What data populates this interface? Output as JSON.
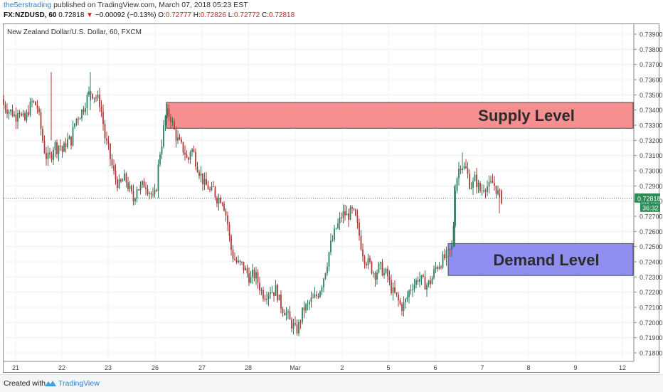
{
  "header": {
    "author": "the5erstrading",
    "published": "published on TradingView.com, March 07, 2018 05:23 EST",
    "symbol": "FX:NZDUSD, 60",
    "last": "0.72818",
    "arrow": "▼",
    "change": "−0.00092 (−0.13%)",
    "o_label": "O:",
    "o_value": "0.72777",
    "h_label": "H:",
    "h_value": "0.72826",
    "l_label": "L:",
    "l_value": "0.72772",
    "c_label": "C:",
    "c_value": "0.72818"
  },
  "footer": {
    "created_with": "Created with",
    "brand": "TradingView"
  },
  "chart_data": {
    "type": "candlestick",
    "title": "New Zealand Dollar/U.S. Dollar, 60, FXCM",
    "ylim": [
      0.7175,
      0.7397
    ],
    "y_ticks": [
      "0.73900",
      "0.73800",
      "0.73700",
      "0.73600",
      "0.73500",
      "0.73400",
      "0.73300",
      "0.73200",
      "0.73100",
      "0.73000",
      "0.72900",
      "0.72800",
      "0.72700",
      "0.72600",
      "0.72500",
      "0.72400",
      "0.72300",
      "0.72200",
      "0.72100",
      "0.72000",
      "0.71900",
      "0.71800"
    ],
    "x_ticks": [
      "21",
      "22",
      "23",
      "26",
      "27",
      "28",
      "Mar",
      "2",
      "5",
      "6",
      "7",
      "8",
      "9",
      "12"
    ],
    "last_price": "0.72818",
    "countdown": "36:32",
    "zones": [
      {
        "label": "Supply Level",
        "from": 0.7328,
        "to": 0.7345,
        "color": "#f27c7c"
      },
      {
        "label": "Demand Level",
        "from": 0.7231,
        "to": 0.7252,
        "color": "#7b7bf0"
      }
    ],
    "up_color": "#2e7d5b",
    "down_color": "#b33a3a",
    "path_x": [
      0,
      2,
      4,
      6,
      8,
      10,
      12,
      13,
      14,
      15,
      16,
      18,
      20,
      23,
      25,
      26,
      27,
      28,
      30,
      32,
      34,
      36,
      38,
      40,
      42,
      44,
      46,
      48,
      50,
      52,
      54,
      56,
      58,
      60,
      62,
      64,
      66,
      67,
      68,
      69,
      70,
      71,
      72,
      74,
      76,
      78,
      80,
      82,
      83,
      84,
      85,
      86,
      87,
      88,
      90,
      92,
      94,
      96,
      98,
      100,
      102,
      103,
      104,
      105,
      106,
      107,
      108,
      110,
      112,
      114,
      116,
      118,
      120,
      122,
      124,
      126,
      128,
      130,
      132,
      134,
      136,
      138,
      140,
      142,
      144,
      146,
      148,
      150,
      152,
      154,
      156,
      157,
      158,
      159,
      160,
      161,
      162,
      163,
      164,
      166,
      168,
      170,
      172,
      174,
      176,
      178,
      180,
      182,
      184,
      186,
      188,
      190,
      192,
      194,
      196,
      198,
      200,
      202,
      204,
      206,
      208,
      210,
      212,
      214,
      216,
      218,
      220,
      222,
      224,
      226,
      228,
      230,
      232,
      234,
      236,
      238,
      240,
      242,
      244,
      246,
      248,
      250,
      252,
      254,
      256,
      258,
      260,
      262,
      264,
      266,
      268,
      270,
      272,
      274,
      276,
      278,
      280,
      282,
      284,
      286,
      288,
      290,
      292,
      294,
      296,
      298,
      300,
      302,
      304,
      306,
      308,
      310,
      312,
      314,
      316,
      318,
      320,
      322,
      324,
      326,
      328,
      330,
      332,
      334,
      336,
      338,
      340,
      342,
      344,
      346,
      348,
      350,
      352,
      354,
      356,
      358,
      360,
      362,
      364,
      366,
      368,
      370,
      372,
      374,
      376,
      378,
      380,
      382,
      384,
      386,
      388,
      390,
      392,
      394,
      396,
      398,
      400,
      402,
      404,
      406,
      408,
      410,
      412,
      414,
      416,
      418,
      420,
      422,
      424,
      426,
      428,
      430,
      432,
      434,
      436,
      438,
      440,
      442,
      444,
      446,
      448,
      450,
      452,
      454,
      456,
      458,
      460,
      462,
      464,
      466,
      468,
      470,
      472,
      474,
      476,
      478,
      480,
      482,
      484,
      486,
      488,
      490,
      492,
      494,
      496,
      498,
      500,
      502,
      504,
      506,
      508,
      510,
      512,
      514,
      516,
      518,
      520,
      522,
      524,
      526,
      528,
      530,
      532,
      534,
      536,
      538,
      540,
      542,
      544,
      546,
      548,
      550,
      552,
      554,
      556,
      558,
      560,
      562,
      564,
      566,
      568,
      570,
      572,
      574,
      576,
      578,
      580,
      582,
      584,
      586,
      588,
      590,
      592,
      594,
      596,
      598,
      600,
      602,
      604,
      606,
      608,
      610,
      612,
      614,
      616,
      618,
      620,
      622,
      624,
      626,
      628,
      630,
      632,
      634,
      636,
      638,
      640,
      642,
      644,
      646,
      648,
      650,
      652,
      654,
      656,
      658,
      660,
      662,
      664,
      666,
      668,
      670,
      672,
      674,
      676,
      678,
      680,
      682,
      684,
      686,
      688,
      690,
      692,
      694,
      696,
      698,
      700,
      702,
      704,
      706,
      708,
      710,
      712,
      714,
      716,
      718,
      720,
      722,
      724,
      726,
      728,
      730,
      732,
      734,
      736,
      738,
      740,
      742,
      744,
      746,
      748,
      750,
      752,
      754,
      756,
      758,
      760,
      762,
      764,
      766,
      768,
      770,
      772,
      774,
      776,
      778,
      780,
      782,
      784,
      786,
      788,
      790,
      792,
      794,
      796,
      798,
      800,
      802,
      804,
      806,
      808,
      810,
      812,
      814,
      816,
      818,
      820,
      822,
      824,
      826,
      828,
      830,
      832,
      834,
      836,
      838,
      840,
      842,
      844,
      846,
      848,
      850,
      852,
      854,
      856,
      858,
      860,
      862,
      864,
      866,
      868,
      870,
      872,
      874,
      876,
      878,
      880,
      882,
      884,
      886,
      888,
      890,
      892,
      894,
      896,
      898,
      900,
      902,
      904,
      906,
      908,
      910,
      912,
      914,
      916,
      918,
      920,
      922,
      924,
      926,
      928,
      930,
      932,
      934,
      936,
      938,
      940,
      942,
      944,
      946,
      948,
      950,
      952,
      954,
      956,
      958,
      960,
      962,
      964,
      966,
      968,
      970,
      972,
      974,
      976,
      978,
      980,
      982,
      984,
      986,
      988,
      990,
      992,
      994,
      996,
      998,
      1000,
      1002,
      1004,
      1006,
      1008,
      1010,
      1012,
      1014,
      1016,
      1018,
      1020,
      1022,
      1024,
      1026,
      1028,
      1030,
      1032,
      1034,
      1036,
      1038,
      1040,
      1042,
      1044,
      1046,
      1048,
      1050,
      1052,
      1054,
      1056,
      1058,
      1060,
      1062,
      1064,
      1066,
      1068,
      1070,
      1072,
      1074,
      1076,
      1078,
      1080,
      1082,
      1084,
      1086,
      1088,
      1090,
      1092,
      1094,
      1096,
      1098,
      1100,
      1102,
      1104,
      1106,
      1108,
      1110,
      1112,
      1114,
      1116,
      1118,
      1120,
      1122,
      1124,
      1126,
      1128,
      1130,
      1132,
      1134,
      1136,
      1138,
      1140,
      1142,
      1144,
      1146,
      1148,
      1150,
      1152,
      1154,
      1156,
      1158,
      1160,
      1162,
      1164,
      1166,
      1168,
      1170,
      1172,
      1174,
      1176,
      1178,
      1180,
      1182,
      1184,
      1186,
      1188,
      1190,
      1192,
      1194,
      1196,
      1198,
      1200
    ],
    "candle_anchors": [
      [
        0,
        0.7347
      ],
      [
        6,
        0.7343
      ],
      [
        12,
        0.734
      ],
      [
        18,
        0.7338
      ],
      [
        22,
        0.7335
      ],
      [
        26,
        0.7343
      ],
      [
        30,
        0.7335
      ],
      [
        35,
        0.7333
      ],
      [
        40,
        0.734
      ],
      [
        45,
        0.7345
      ],
      [
        52,
        0.7343
      ],
      [
        55,
        0.7335
      ],
      [
        60,
        0.732
      ],
      [
        64,
        0.731
      ],
      [
        68,
        0.7308
      ],
      [
        72,
        0.731
      ],
      [
        76,
        0.7318
      ],
      [
        80,
        0.7315
      ],
      [
        84,
        0.7318
      ],
      [
        88,
        0.7312
      ],
      [
        92,
        0.7318
      ],
      [
        96,
        0.732
      ],
      [
        100,
        0.732
      ],
      [
        104,
        0.733
      ],
      [
        108,
        0.7335
      ],
      [
        112,
        0.7337
      ],
      [
        116,
        0.734
      ],
      [
        120,
        0.7345
      ],
      [
        124,
        0.735
      ],
      [
        128,
        0.7352
      ],
      [
        132,
        0.735
      ],
      [
        136,
        0.7348
      ],
      [
        140,
        0.7345
      ],
      [
        144,
        0.7335
      ],
      [
        148,
        0.732
      ],
      [
        152,
        0.7315
      ],
      [
        156,
        0.7306
      ],
      [
        160,
        0.7298
      ],
      [
        164,
        0.7293
      ],
      [
        168,
        0.729
      ],
      [
        172,
        0.7293
      ],
      [
        176,
        0.7295
      ],
      [
        180,
        0.729
      ],
      [
        184,
        0.7285
      ],
      [
        188,
        0.728
      ],
      [
        192,
        0.729
      ],
      [
        196,
        0.7288
      ],
      [
        200,
        0.729
      ],
      [
        204,
        0.7292
      ],
      [
        208,
        0.7288
      ],
      [
        212,
        0.7285
      ],
      [
        216,
        0.728
      ],
      [
        220,
        0.729
      ],
      [
        224,
        0.731
      ],
      [
        228,
        0.732
      ],
      [
        232,
        0.7335
      ],
      [
        236,
        0.7338
      ],
      [
        240,
        0.7335
      ],
      [
        244,
        0.7328
      ],
      [
        248,
        0.7322
      ],
      [
        252,
        0.7318
      ],
      [
        256,
        0.7315
      ],
      [
        260,
        0.7312
      ],
      [
        264,
        0.7305
      ],
      [
        268,
        0.7315
      ],
      [
        272,
        0.7312
      ],
      [
        276,
        0.7305
      ],
      [
        280,
        0.73
      ],
      [
        284,
        0.7295
      ],
      [
        288,
        0.729
      ],
      [
        292,
        0.729
      ],
      [
        296,
        0.7285
      ],
      [
        300,
        0.7288
      ],
      [
        304,
        0.7282
      ],
      [
        308,
        0.7282
      ],
      [
        312,
        0.7282
      ],
      [
        316,
        0.7275
      ],
      [
        320,
        0.7265
      ],
      [
        324,
        0.725
      ],
      [
        328,
        0.7243
      ],
      [
        332,
        0.724
      ],
      [
        336,
        0.7238
      ],
      [
        340,
        0.7238
      ],
      [
        344,
        0.7235
      ],
      [
        348,
        0.7232
      ],
      [
        352,
        0.7228
      ],
      [
        356,
        0.7232
      ],
      [
        360,
        0.723
      ],
      [
        364,
        0.7225
      ],
      [
        368,
        0.722
      ],
      [
        372,
        0.7218
      ],
      [
        376,
        0.722
      ],
      [
        380,
        0.7222
      ],
      [
        384,
        0.722
      ],
      [
        388,
        0.7222
      ],
      [
        392,
        0.7215
      ],
      [
        396,
        0.721
      ],
      [
        400,
        0.7208
      ],
      [
        404,
        0.7205
      ],
      [
        408,
        0.72
      ],
      [
        412,
        0.7198
      ],
      [
        416,
        0.7194
      ],
      [
        420,
        0.7198
      ],
      [
        424,
        0.7205
      ],
      [
        428,
        0.721
      ],
      [
        432,
        0.721
      ],
      [
        436,
        0.7214
      ],
      [
        440,
        0.7215
      ],
      [
        444,
        0.7217
      ],
      [
        448,
        0.722
      ],
      [
        452,
        0.7225
      ],
      [
        456,
        0.7232
      ],
      [
        460,
        0.724
      ],
      [
        464,
        0.725
      ],
      [
        468,
        0.7255
      ],
      [
        472,
        0.7262
      ],
      [
        476,
        0.7265
      ],
      [
        480,
        0.727
      ],
      [
        484,
        0.7272
      ],
      [
        488,
        0.727
      ],
      [
        492,
        0.7272
      ],
      [
        496,
        0.7273
      ],
      [
        500,
        0.7268
      ],
      [
        504,
        0.726
      ],
      [
        508,
        0.725
      ],
      [
        512,
        0.7243
      ],
      [
        516,
        0.724
      ],
      [
        520,
        0.7238
      ],
      [
        524,
        0.7234
      ],
      [
        528,
        0.7232
      ],
      [
        532,
        0.7236
      ],
      [
        536,
        0.7236
      ],
      [
        540,
        0.7232
      ],
      [
        544,
        0.7232
      ],
      [
        548,
        0.7225
      ],
      [
        552,
        0.722
      ],
      [
        556,
        0.7218
      ],
      [
        560,
        0.7214
      ],
      [
        564,
        0.721
      ],
      [
        568,
        0.7212
      ],
      [
        572,
        0.7216
      ],
      [
        576,
        0.7222
      ],
      [
        580,
        0.7225
      ],
      [
        584,
        0.7226
      ],
      [
        588,
        0.723
      ],
      [
        592,
        0.7228
      ],
      [
        596,
        0.7226
      ],
      [
        600,
        0.7225
      ],
      [
        604,
        0.7226
      ],
      [
        608,
        0.723
      ],
      [
        612,
        0.7236
      ],
      [
        616,
        0.7238
      ],
      [
        620,
        0.724
      ],
      [
        624,
        0.7242
      ],
      [
        628,
        0.7244
      ],
      [
        632,
        0.7246
      ],
      [
        636,
        0.725
      ],
      [
        640,
        0.729
      ],
      [
        644,
        0.73
      ],
      [
        648,
        0.7305
      ],
      [
        652,
        0.7302
      ],
      [
        656,
        0.73
      ],
      [
        660,
        0.7292
      ],
      [
        664,
        0.729
      ],
      [
        668,
        0.7295
      ],
      [
        672,
        0.729
      ],
      [
        676,
        0.7286
      ],
      [
        680,
        0.729
      ],
      [
        684,
        0.729
      ],
      [
        688,
        0.7289
      ],
      [
        692,
        0.7292
      ],
      [
        696,
        0.729
      ],
      [
        700,
        0.7285
      ],
      [
        704,
        0.7282
      ]
    ]
  }
}
